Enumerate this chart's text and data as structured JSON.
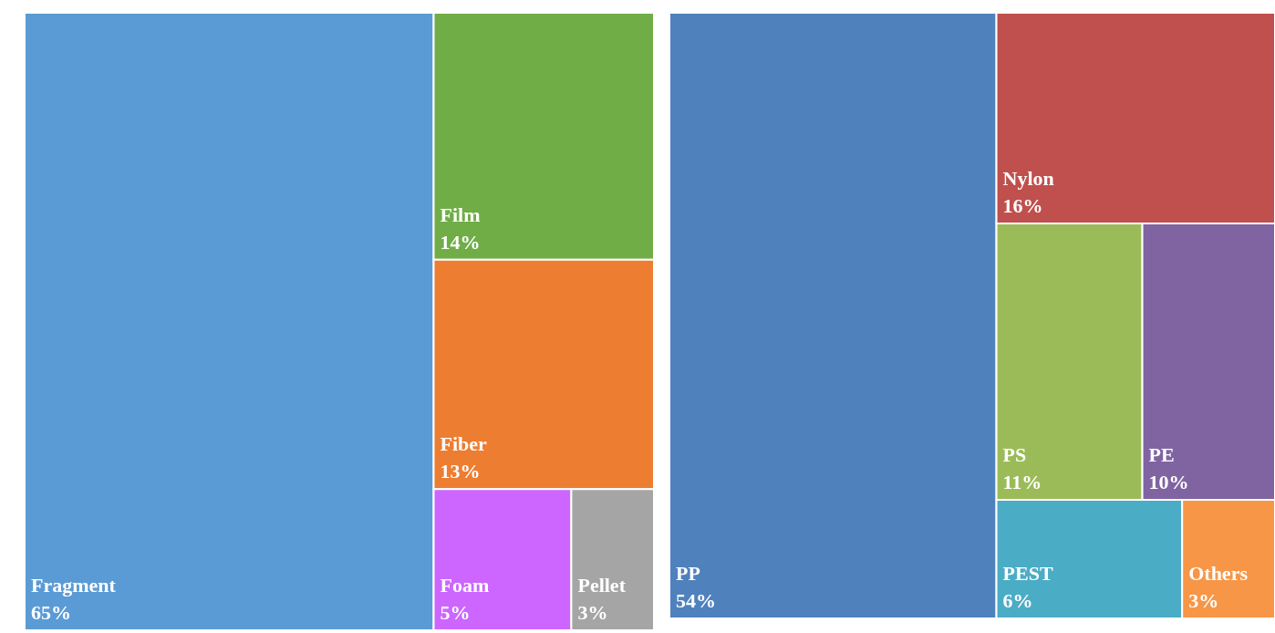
{
  "chart_data": [
    {
      "type": "other",
      "categories": [
        "Fragment",
        "Film",
        "Fiber",
        "Foam",
        "Pellet"
      ],
      "values": [
        65,
        14,
        13,
        5,
        3
      ],
      "value_labels": [
        "65%",
        "14%",
        "13%",
        "5%",
        "3%"
      ],
      "colors": [
        "#5b9bd5",
        "#70ad47",
        "#ed7d31",
        "#cc66ff",
        "#a5a5a5"
      ]
    },
    {
      "type": "other",
      "categories": [
        "PP",
        "Nylon",
        "PS",
        "PE",
        "PEST",
        "Others"
      ],
      "values": [
        54,
        16,
        11,
        10,
        6,
        3
      ],
      "value_labels": [
        "54%",
        "16%",
        "11%",
        "10%",
        "6%",
        "3%"
      ],
      "colors": [
        "#4f81bd",
        "#c0504d",
        "#9bbb59",
        "#8064a2",
        "#4bacc6",
        "#f79646"
      ]
    }
  ]
}
